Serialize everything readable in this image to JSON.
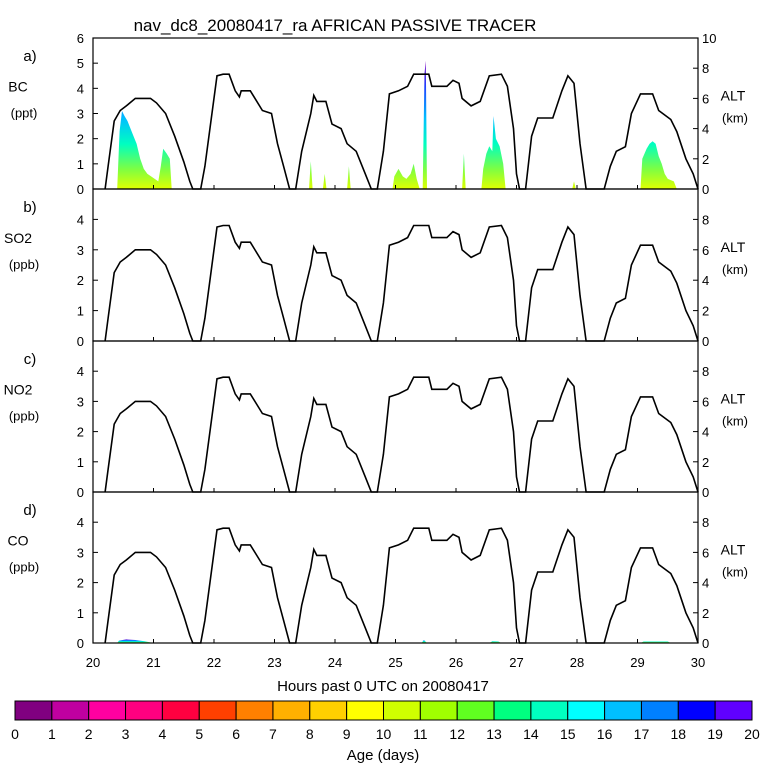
{
  "chart_data": {
    "type": "area",
    "title": "nav_dc8_20080417_ra AFRICAN PASSIVE TRACER",
    "xlabel": "Hours past 0 UTC on 20080417",
    "xlim": [
      20,
      30
    ],
    "x_ticks": [
      "20",
      "21",
      "22",
      "23",
      "24",
      "25",
      "26",
      "27",
      "28",
      "29",
      "30"
    ],
    "right_axis": {
      "label": "ALT",
      "unit": "(km)",
      "ylim": [
        0,
        10
      ]
    },
    "flight_altitude_km": [
      [
        20.2,
        0
      ],
      [
        20.25,
        1.5
      ],
      [
        20.35,
        4.5
      ],
      [
        20.45,
        5.2
      ],
      [
        20.55,
        5.5
      ],
      [
        20.7,
        6.0
      ],
      [
        20.95,
        6.0
      ],
      [
        21.05,
        5.7
      ],
      [
        21.2,
        5.0
      ],
      [
        21.35,
        3.5
      ],
      [
        21.5,
        1.8
      ],
      [
        21.6,
        0.5
      ],
      [
        21.65,
        0
      ],
      [
        21.78,
        0
      ],
      [
        21.85,
        1.5
      ],
      [
        22.05,
        7.5
      ],
      [
        22.15,
        7.6
      ],
      [
        22.25,
        7.6
      ],
      [
        22.35,
        6.5
      ],
      [
        22.42,
        6.1
      ],
      [
        22.45,
        6.5
      ],
      [
        22.6,
        6.5
      ],
      [
        22.8,
        5.2
      ],
      [
        22.95,
        5.0
      ],
      [
        23.05,
        3.0
      ],
      [
        23.15,
        1.5
      ],
      [
        23.25,
        0
      ],
      [
        23.35,
        0
      ],
      [
        23.45,
        2.5
      ],
      [
        23.6,
        5.0
      ],
      [
        23.65,
        6.2
      ],
      [
        23.7,
        5.8
      ],
      [
        23.85,
        5.8
      ],
      [
        23.95,
        4.3
      ],
      [
        24.1,
        4.0
      ],
      [
        24.2,
        3.0
      ],
      [
        24.35,
        2.5
      ],
      [
        24.5,
        1.0
      ],
      [
        24.6,
        0
      ],
      [
        24.7,
        0
      ],
      [
        24.8,
        2.5
      ],
      [
        24.9,
        6.3
      ],
      [
        25.05,
        6.5
      ],
      [
        25.2,
        6.8
      ],
      [
        25.3,
        7.6
      ],
      [
        25.55,
        7.6
      ],
      [
        25.6,
        6.8
      ],
      [
        25.85,
        6.8
      ],
      [
        25.95,
        7.2
      ],
      [
        26.05,
        7.0
      ],
      [
        26.1,
        6.0
      ],
      [
        26.25,
        5.5
      ],
      [
        26.4,
        5.8
      ],
      [
        26.55,
        7.5
      ],
      [
        26.75,
        7.6
      ],
      [
        26.85,
        6.8
      ],
      [
        26.95,
        4.0
      ],
      [
        27.0,
        1.0
      ],
      [
        27.05,
        0
      ],
      [
        27.15,
        0
      ],
      [
        27.25,
        3.5
      ],
      [
        27.35,
        4.7
      ],
      [
        27.6,
        4.7
      ],
      [
        27.75,
        6.5
      ],
      [
        27.85,
        7.5
      ],
      [
        27.95,
        7.0
      ],
      [
        28.05,
        3.0
      ],
      [
        28.15,
        0
      ],
      [
        28.45,
        0
      ],
      [
        28.55,
        1.5
      ],
      [
        28.65,
        2.5
      ],
      [
        28.8,
        2.8
      ],
      [
        28.9,
        5.0
      ],
      [
        29.05,
        6.3
      ],
      [
        29.25,
        6.3
      ],
      [
        29.35,
        5.2
      ],
      [
        29.55,
        4.6
      ],
      [
        29.65,
        3.8
      ],
      [
        29.8,
        2.0
      ],
      [
        29.92,
        1.0
      ],
      [
        30.0,
        0
      ]
    ],
    "panels": [
      {
        "letter": "a)",
        "species": "BC",
        "unit": "(ppt)",
        "ylim": [
          0,
          6
        ],
        "y_ticks": [
          "0",
          "1",
          "2",
          "3",
          "4",
          "5",
          "6"
        ],
        "alt_ticks": [
          "0",
          "2",
          "4",
          "6",
          "8",
          "10"
        ],
        "tracer_peaks": [
          [
            20.4,
            0
          ],
          [
            20.44,
            2.3
          ],
          [
            20.48,
            3.1
          ],
          [
            20.52,
            2.9
          ],
          [
            20.57,
            2.7
          ],
          [
            20.62,
            2.4
          ],
          [
            20.67,
            2.1
          ],
          [
            20.72,
            1.8
          ],
          [
            20.78,
            1.2
          ],
          [
            20.84,
            0.8
          ],
          [
            20.9,
            0.6
          ],
          [
            20.96,
            0.5
          ],
          [
            21.02,
            0.4
          ],
          [
            21.08,
            0.3
          ],
          [
            21.12,
            0.9
          ],
          [
            21.16,
            1.6
          ],
          [
            21.22,
            1.4
          ],
          [
            21.27,
            1.2
          ],
          [
            21.3,
            0
          ],
          [
            23.57,
            0
          ],
          [
            23.6,
            1.1
          ],
          [
            23.63,
            0
          ],
          [
            23.8,
            0
          ],
          [
            23.83,
            0.6
          ],
          [
            23.86,
            0
          ],
          [
            24.2,
            0
          ],
          [
            24.23,
            0.9
          ],
          [
            24.26,
            0
          ],
          [
            24.95,
            0
          ],
          [
            24.98,
            0.5
          ],
          [
            25.05,
            0.8
          ],
          [
            25.12,
            0.5
          ],
          [
            25.18,
            0.4
          ],
          [
            25.25,
            0.6
          ],
          [
            25.3,
            1.0
          ],
          [
            25.35,
            0.4
          ],
          [
            25.4,
            0
          ],
          [
            25.45,
            0
          ],
          [
            25.48,
            4.6
          ],
          [
            25.5,
            5.1
          ],
          [
            25.52,
            0
          ],
          [
            26.1,
            0
          ],
          [
            26.13,
            1.4
          ],
          [
            26.16,
            0
          ],
          [
            26.42,
            0
          ],
          [
            26.45,
            0.8
          ],
          [
            26.5,
            1.4
          ],
          [
            26.55,
            1.7
          ],
          [
            26.6,
            1.5
          ],
          [
            26.62,
            2.9
          ],
          [
            26.66,
            2.0
          ],
          [
            26.72,
            1.7
          ],
          [
            26.78,
            1.0
          ],
          [
            26.82,
            0
          ],
          [
            27.92,
            0
          ],
          [
            27.95,
            0.3
          ],
          [
            27.98,
            0
          ],
          [
            29.05,
            0
          ],
          [
            29.08,
            1.2
          ],
          [
            29.15,
            1.6
          ],
          [
            29.2,
            1.8
          ],
          [
            29.25,
            1.9
          ],
          [
            29.3,
            1.8
          ],
          [
            29.35,
            1.3
          ],
          [
            29.4,
            1.0
          ],
          [
            29.45,
            0.6
          ],
          [
            29.5,
            0.4
          ],
          [
            29.6,
            0.3
          ],
          [
            29.65,
            0
          ]
        ]
      },
      {
        "letter": "b)",
        "species": "SO2",
        "unit": "(ppb)",
        "ylim": [
          0,
          5
        ],
        "y_ticks": [
          "0",
          "1",
          "2",
          "3",
          "4"
        ],
        "alt_ticks": [
          "0",
          "2",
          "4",
          "6",
          "8"
        ],
        "tracer_peaks": []
      },
      {
        "letter": "c)",
        "species": "NO2",
        "unit": "(ppb)",
        "ylim": [
          0,
          5
        ],
        "y_ticks": [
          "0",
          "1",
          "2",
          "3",
          "4"
        ],
        "alt_ticks": [
          "0",
          "2",
          "4",
          "6",
          "8"
        ],
        "tracer_peaks": []
      },
      {
        "letter": "d)",
        "species": "CO",
        "unit": "(ppb)",
        "ylim": [
          0,
          5
        ],
        "y_ticks": [
          "0",
          "1",
          "2",
          "3",
          "4"
        ],
        "alt_ticks": [
          "0",
          "2",
          "4",
          "6",
          "8"
        ],
        "tracer_peaks": [
          [
            20.4,
            0
          ],
          [
            20.43,
            0.08
          ],
          [
            20.55,
            0.12
          ],
          [
            20.7,
            0.1
          ],
          [
            20.85,
            0.06
          ],
          [
            21.0,
            0
          ],
          [
            25.43,
            0
          ],
          [
            25.47,
            0.1
          ],
          [
            25.52,
            0
          ],
          [
            26.55,
            0
          ],
          [
            26.6,
            0.06
          ],
          [
            26.7,
            0.05
          ],
          [
            26.75,
            0
          ],
          [
            29.05,
            0
          ],
          [
            29.1,
            0.05
          ],
          [
            29.5,
            0.05
          ],
          [
            29.55,
            0
          ]
        ]
      }
    ],
    "colorbar": {
      "label": "Age (days)",
      "ticks": [
        "0",
        "1",
        "2",
        "3",
        "4",
        "5",
        "6",
        "7",
        "8",
        "9",
        "10",
        "11",
        "12",
        "13",
        "14",
        "15",
        "16",
        "17",
        "18",
        "19",
        "20"
      ],
      "colors": [
        "#800080",
        "#c000a0",
        "#ff00a0",
        "#ff0080",
        "#ff0040",
        "#ff4000",
        "#ff8000",
        "#ffb000",
        "#ffd000",
        "#ffff00",
        "#d0ff00",
        "#a0ff00",
        "#60ff20",
        "#00ff80",
        "#00ffc0",
        "#00ffff",
        "#00c0ff",
        "#0080ff",
        "#0000ff",
        "#6000ff"
      ]
    },
    "grid": false,
    "legend": "bottom colorbar"
  }
}
